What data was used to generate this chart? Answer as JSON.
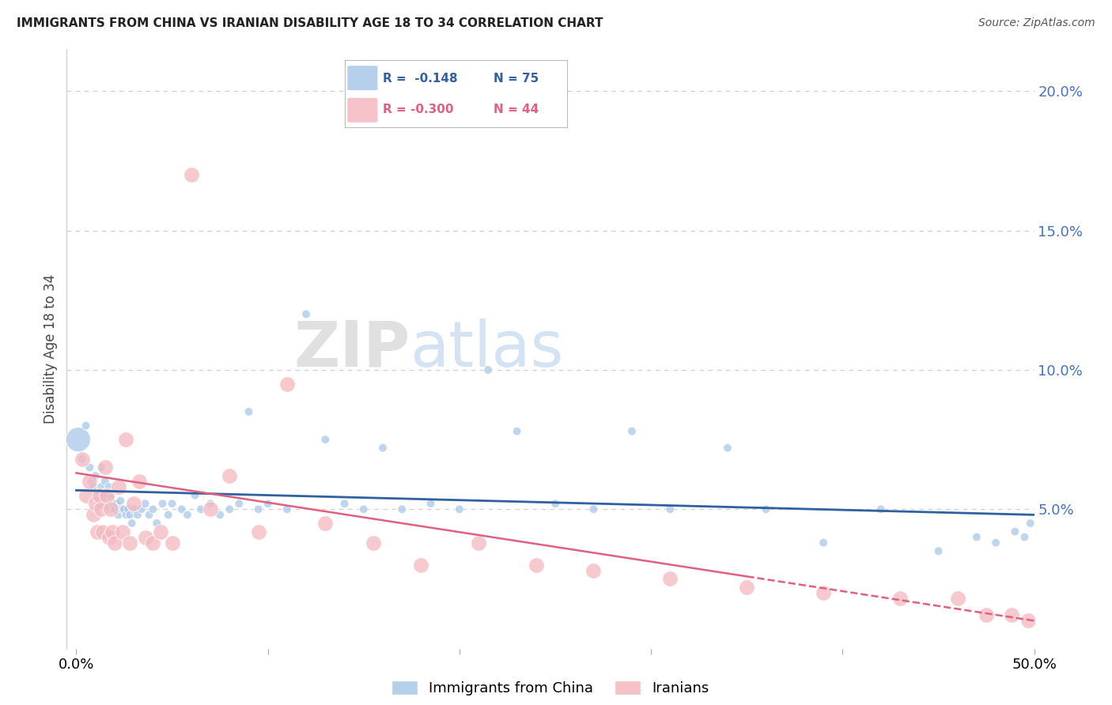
{
  "title": "IMMIGRANTS FROM CHINA VS IRANIAN DISABILITY AGE 18 TO 34 CORRELATION CHART",
  "source": "Source: ZipAtlas.com",
  "ylabel": "Disability Age 18 to 34",
  "legend_china": "Immigrants from China",
  "legend_iran": "Iranians",
  "china_color": "#a8c8e8",
  "iran_color": "#f4b8c0",
  "trend_china_color": "#3060a0",
  "trend_iran_color": "#e06080",
  "background_color": "#ffffff",
  "grid_color": "#cccccc",
  "ylim": [
    0.0,
    0.215
  ],
  "xlim": [
    -0.005,
    0.5
  ],
  "yticks": [
    0.05,
    0.1,
    0.15,
    0.2
  ],
  "ytick_labels": [
    "5.0%",
    "10.0%",
    "15.0%",
    "20.0%"
  ],
  "xticks": [
    0.0,
    0.1,
    0.2,
    0.3,
    0.4,
    0.5
  ],
  "xtick_labels": [
    "0.0%",
    "",
    "",
    "",
    "",
    "50.0%"
  ],
  "china_x": [
    0.001,
    0.003,
    0.005,
    0.007,
    0.008,
    0.009,
    0.01,
    0.011,
    0.012,
    0.013,
    0.013,
    0.014,
    0.015,
    0.015,
    0.016,
    0.017,
    0.018,
    0.018,
    0.019,
    0.02,
    0.021,
    0.022,
    0.023,
    0.024,
    0.025,
    0.026,
    0.027,
    0.028,
    0.029,
    0.03,
    0.032,
    0.034,
    0.036,
    0.038,
    0.04,
    0.042,
    0.045,
    0.048,
    0.05,
    0.055,
    0.058,
    0.062,
    0.065,
    0.07,
    0.075,
    0.08,
    0.085,
    0.09,
    0.095,
    0.1,
    0.11,
    0.12,
    0.13,
    0.14,
    0.15,
    0.16,
    0.17,
    0.185,
    0.2,
    0.215,
    0.23,
    0.25,
    0.27,
    0.29,
    0.31,
    0.34,
    0.36,
    0.39,
    0.42,
    0.45,
    0.47,
    0.48,
    0.49,
    0.495,
    0.498
  ],
  "china_y": [
    0.075,
    0.068,
    0.08,
    0.065,
    0.06,
    0.058,
    0.062,
    0.055,
    0.052,
    0.058,
    0.065,
    0.055,
    0.06,
    0.052,
    0.055,
    0.058,
    0.05,
    0.054,
    0.052,
    0.05,
    0.052,
    0.048,
    0.053,
    0.05,
    0.05,
    0.048,
    0.05,
    0.048,
    0.045,
    0.05,
    0.048,
    0.05,
    0.052,
    0.048,
    0.05,
    0.045,
    0.052,
    0.048,
    0.052,
    0.05,
    0.048,
    0.055,
    0.05,
    0.052,
    0.048,
    0.05,
    0.052,
    0.085,
    0.05,
    0.052,
    0.05,
    0.12,
    0.075,
    0.052,
    0.05,
    0.072,
    0.05,
    0.052,
    0.05,
    0.1,
    0.078,
    0.052,
    0.05,
    0.078,
    0.05,
    0.072,
    0.05,
    0.038,
    0.05,
    0.035,
    0.04,
    0.038,
    0.042,
    0.04,
    0.045
  ],
  "china_size": [
    500,
    60,
    60,
    60,
    60,
    60,
    60,
    60,
    60,
    60,
    60,
    60,
    60,
    60,
    60,
    60,
    60,
    60,
    60,
    60,
    60,
    60,
    60,
    60,
    60,
    60,
    60,
    60,
    60,
    60,
    60,
    60,
    60,
    60,
    60,
    60,
    60,
    60,
    60,
    60,
    60,
    60,
    60,
    60,
    60,
    60,
    60,
    60,
    60,
    60,
    60,
    60,
    60,
    60,
    60,
    60,
    60,
    60,
    60,
    60,
    60,
    60,
    60,
    60,
    60,
    60,
    60,
    60,
    60,
    60,
    60,
    60,
    60,
    60,
    60
  ],
  "iran_x": [
    0.003,
    0.005,
    0.007,
    0.009,
    0.01,
    0.011,
    0.012,
    0.013,
    0.014,
    0.015,
    0.016,
    0.017,
    0.018,
    0.019,
    0.02,
    0.022,
    0.024,
    0.026,
    0.028,
    0.03,
    0.033,
    0.036,
    0.04,
    0.044,
    0.05,
    0.06,
    0.07,
    0.08,
    0.095,
    0.11,
    0.13,
    0.155,
    0.18,
    0.21,
    0.24,
    0.27,
    0.31,
    0.35,
    0.39,
    0.43,
    0.46,
    0.475,
    0.488,
    0.497
  ],
  "iran_y": [
    0.068,
    0.055,
    0.06,
    0.048,
    0.052,
    0.042,
    0.055,
    0.05,
    0.042,
    0.065,
    0.055,
    0.04,
    0.05,
    0.042,
    0.038,
    0.058,
    0.042,
    0.075,
    0.038,
    0.052,
    0.06,
    0.04,
    0.038,
    0.042,
    0.038,
    0.17,
    0.05,
    0.062,
    0.042,
    0.095,
    0.045,
    0.038,
    0.03,
    0.038,
    0.03,
    0.028,
    0.025,
    0.022,
    0.02,
    0.018,
    0.018,
    0.012,
    0.012,
    0.01
  ],
  "trend_china_x0": 0.0,
  "trend_china_y0": 0.0568,
  "trend_china_x1": 0.5,
  "trend_china_y1": 0.048,
  "trend_iran_x0": 0.0,
  "trend_iran_y0": 0.063,
  "trend_iran_x1": 0.5,
  "trend_iran_y1": 0.01
}
